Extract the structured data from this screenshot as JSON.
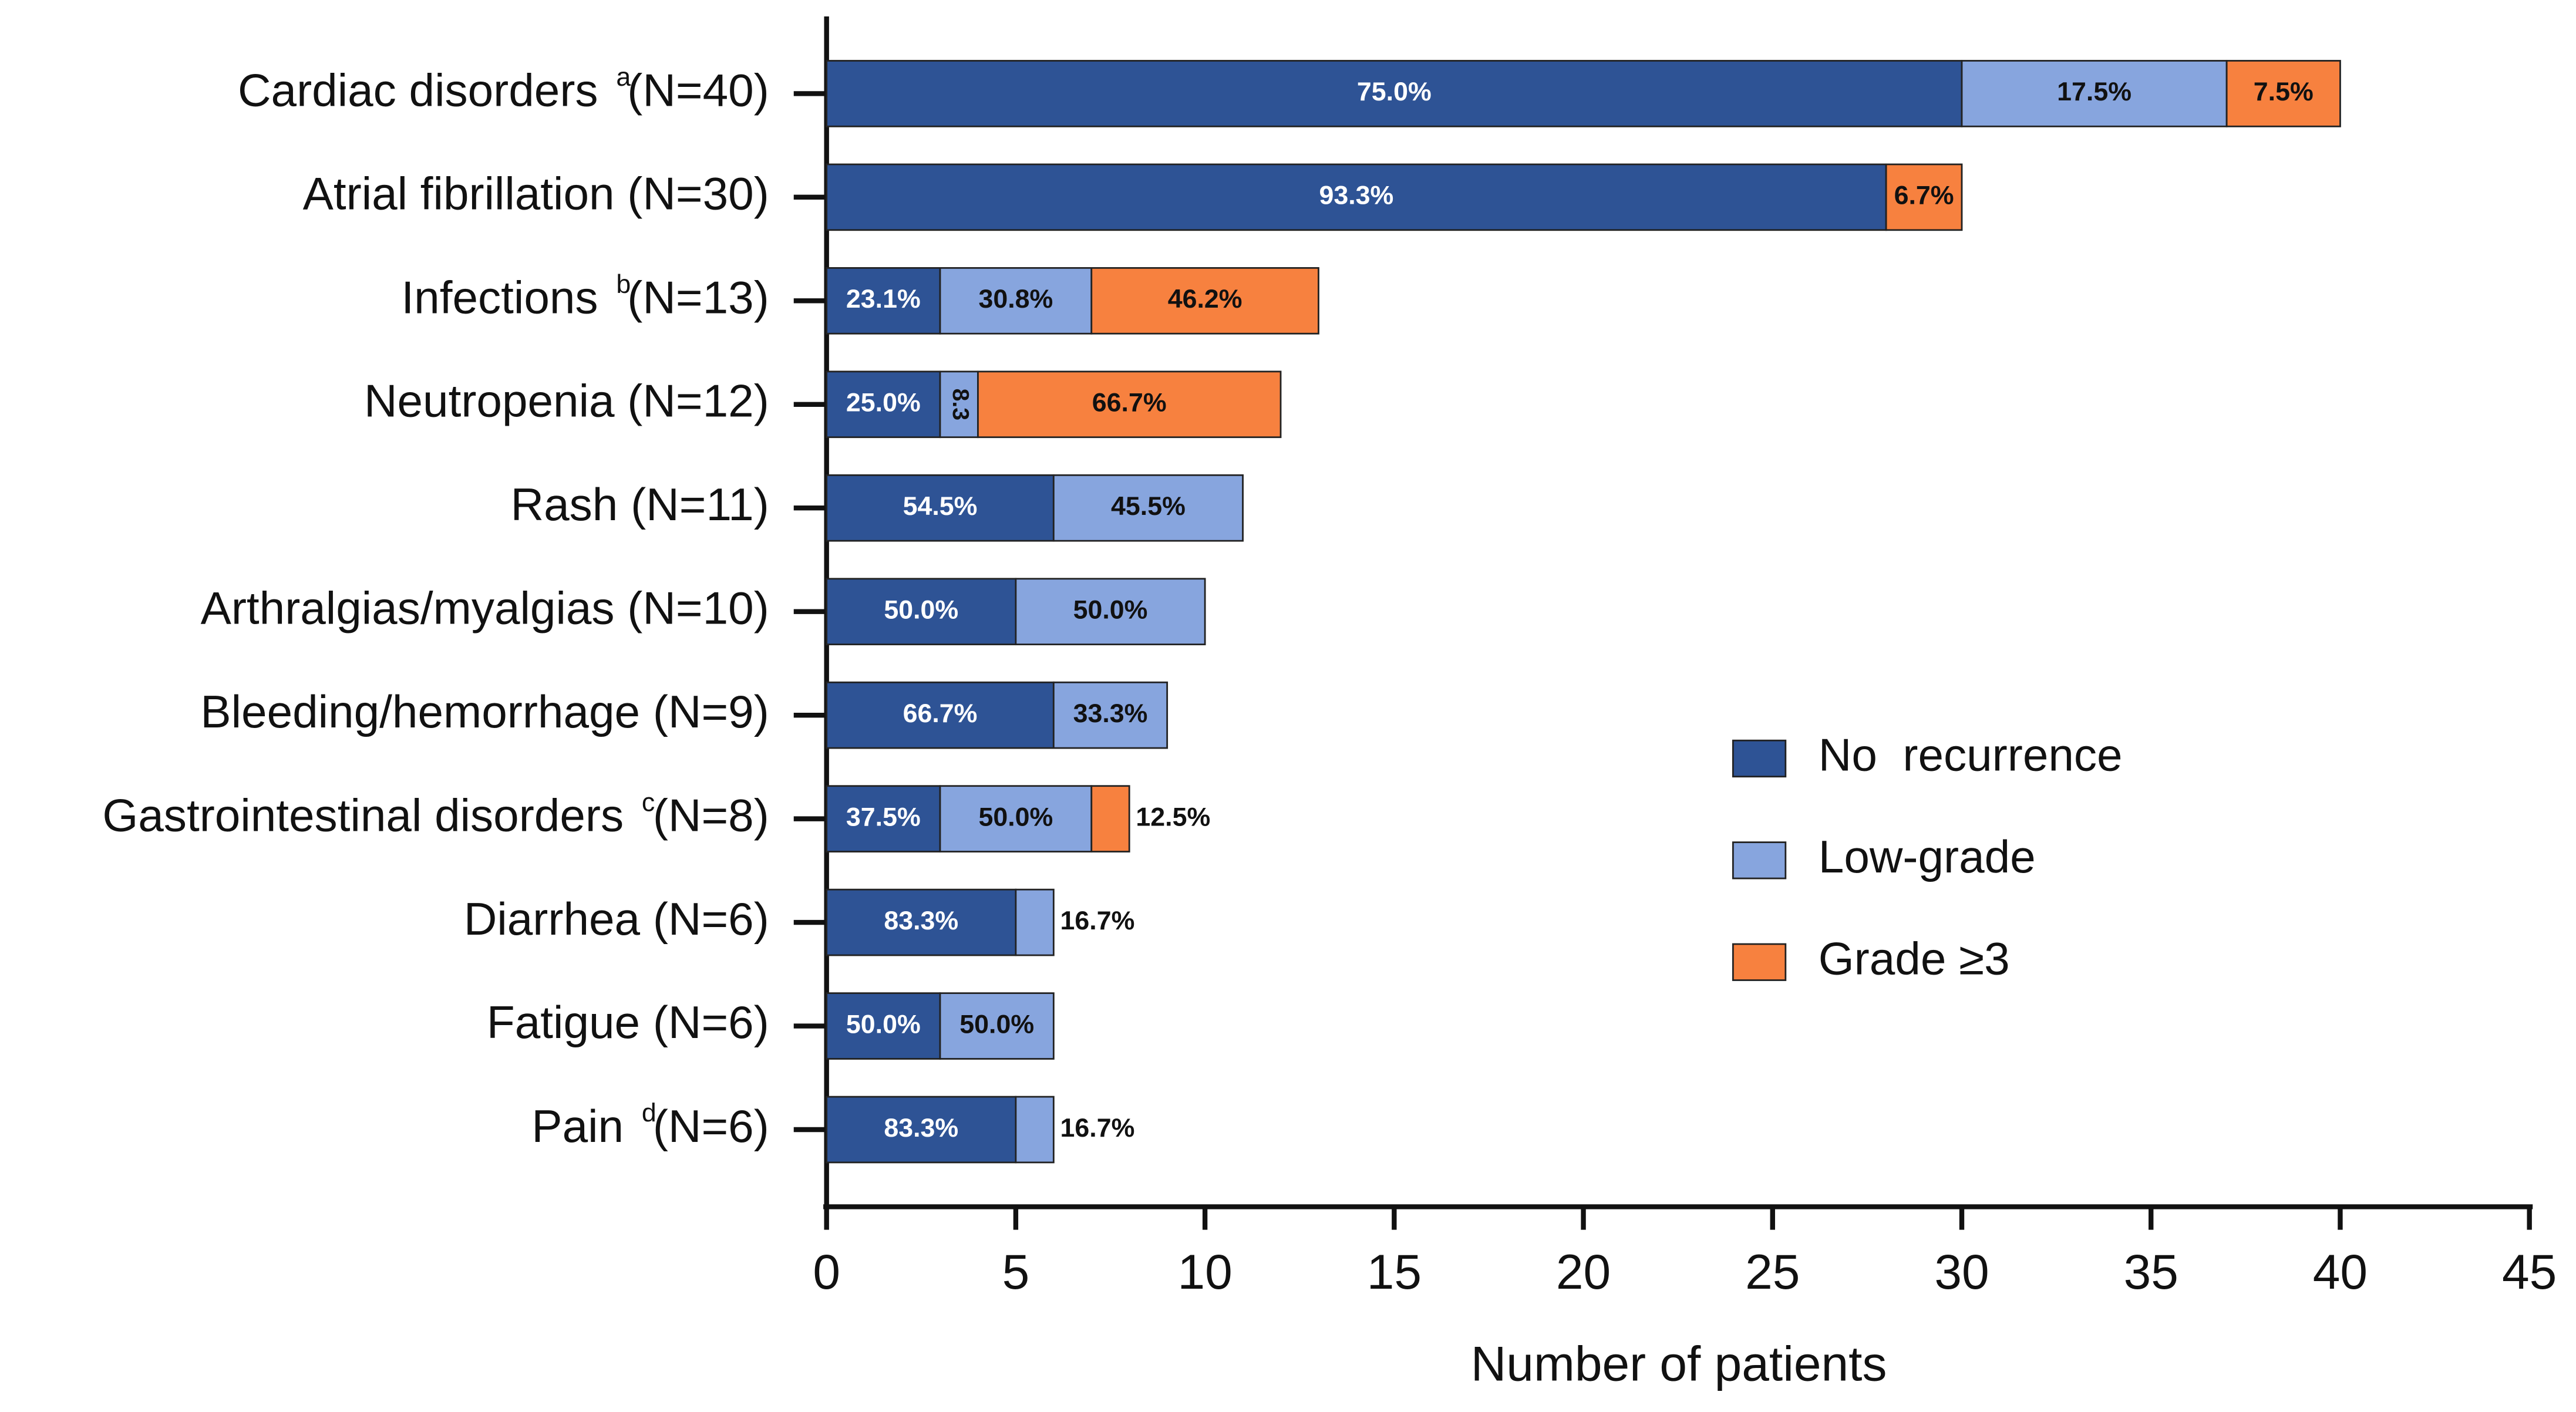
{
  "chart_data": {
    "type": "stacked-bar-horizontal",
    "categories": [
      "Cardiac disorders (N=40)",
      "Atrial fibrillation (N=30)",
      "Infections (N=13)",
      "Neutropenia (N=12)",
      "Rash (N=11)",
      "Arthralgias/myalgias (N=10)",
      "Bleeding/hemorrhage (N=9)",
      "Gastrointestinal disorders (N=8)",
      "Diarrhea (N=6)",
      "Fatigue (N=6)",
      "Pain (N=6)"
    ],
    "footnote_marks": [
      "a",
      null,
      "b",
      null,
      null,
      null,
      null,
      "c",
      null,
      null,
      "d"
    ],
    "series": [
      {
        "name": "No  recurrence",
        "color": "#2e5395",
        "label_color": "#ffffff",
        "values": [
          30,
          28,
          3,
          3,
          6,
          5,
          6,
          3,
          5,
          3,
          5
        ],
        "percent_labels": [
          "75.0%",
          "93.3%",
          "23.1%",
          "25.0%",
          "54.5%",
          "50.0%",
          "66.7%",
          "37.5%",
          "83.3%",
          "50.0%",
          "83.3%"
        ]
      },
      {
        "name": "Low-grade",
        "color": "#87a5de",
        "label_color": "#111111",
        "values": [
          7,
          null,
          4,
          1,
          5,
          5,
          3,
          4,
          1,
          3,
          1
        ],
        "percent_labels": [
          "17.5%",
          null,
          "30.8%",
          "8.3",
          "45.5%",
          "50.0%",
          "33.3%",
          "50.0%",
          "16.7%",
          "50.0%",
          "16.7%"
        ]
      },
      {
        "name": "Grade ≥3",
        "color": "#f7813f",
        "label_color": "#111111",
        "values": [
          3,
          2,
          6,
          8,
          null,
          null,
          null,
          1,
          null,
          null,
          null
        ],
        "percent_labels": [
          "7.5%",
          "6.7%",
          "46.2%",
          "66.7%",
          null,
          null,
          null,
          "12.5%",
          null,
          null,
          null
        ]
      }
    ],
    "x_label": "Number of patients",
    "xlim": [
      0,
      45
    ],
    "xticks": [
      0,
      5,
      10,
      15,
      20,
      25,
      30,
      35,
      40,
      45
    ],
    "legend": "right"
  }
}
